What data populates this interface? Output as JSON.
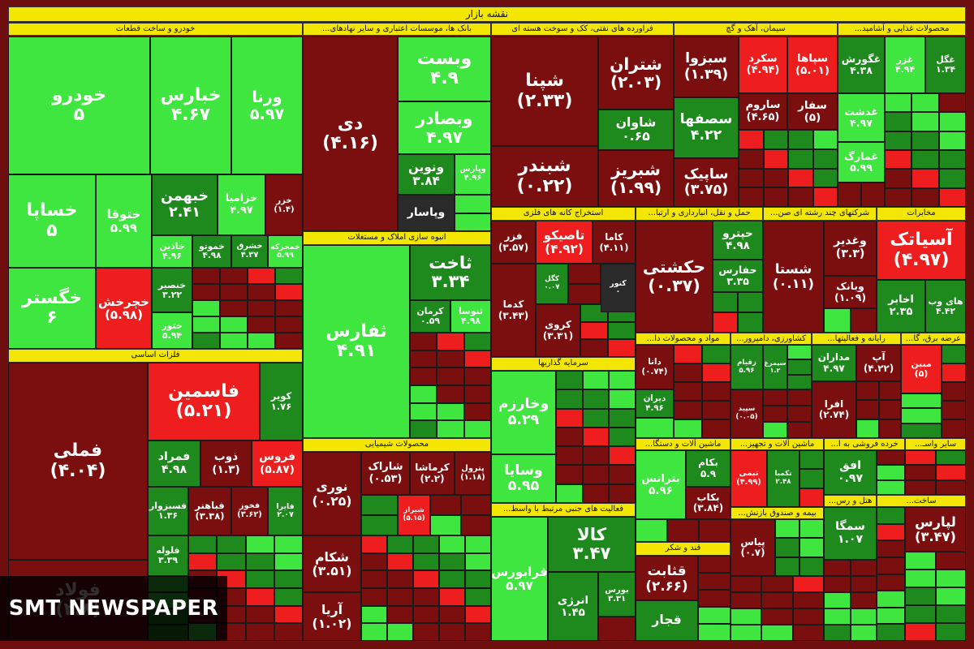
{
  "title": "نقشه بازار",
  "watermark": "SMT NEWSPAPER",
  "sectors": [
    {
      "title": "خودرو و ساخت قطعات",
      "tiles": [
        {
          "name": "خودرو",
          "change": "۵"
        },
        {
          "name": "خبارس",
          "change": "۴.۶۷"
        },
        {
          "name": "ورنا",
          "change": "۵.۹۷"
        },
        {
          "name": "خساپا",
          "change": "۵"
        },
        {
          "name": "ختوقا",
          "change": "۵.۹۹"
        },
        {
          "name": "خبهمن",
          "change": "۲.۴۱"
        },
        {
          "name": "خزامیا",
          "change": "۴.۹۷"
        },
        {
          "name": "خزر",
          "change": "(۱.۴)"
        },
        {
          "name": "خگستر",
          "change": "۶"
        },
        {
          "name": "خچرخش",
          "change": "(۵.۹۸)"
        },
        {
          "name": "خاذین",
          "change": "۴.۹۶"
        },
        {
          "name": "خموتو",
          "change": "۴.۹۸"
        },
        {
          "name": "خشرق",
          "change": "۴.۳۷"
        },
        {
          "name": "خمحرکه",
          "change": "۵.۹۹"
        },
        {
          "name": "خنصیر",
          "change": "۳.۲۲"
        },
        {
          "name": "ختور",
          "change": "۵.۹۴"
        }
      ]
    },
    {
      "title": "فلزات اساسی",
      "tiles": [
        {
          "name": "فملی",
          "change": "(۴.۰۴)"
        },
        {
          "name": "فولاد",
          "change": "(۲.۸)"
        },
        {
          "name": "فاسمین",
          "change": "(۵.۲۱)"
        },
        {
          "name": "کویر",
          "change": "۱.۷۶"
        },
        {
          "name": "فمراد",
          "change": "۴.۹۸"
        },
        {
          "name": "ذوب",
          "change": "(۱.۳)"
        },
        {
          "name": "فروس",
          "change": "(۵.۸۷)"
        },
        {
          "name": "فسبزوار",
          "change": "۱.۳۶"
        },
        {
          "name": "فباهنر",
          "change": "(۳.۳۸)"
        },
        {
          "name": "فخوز",
          "change": "(۳.۶۲)"
        },
        {
          "name": "فایرا",
          "change": "۲.۰۷"
        },
        {
          "name": "فلوله",
          "change": "۳.۳۹"
        }
      ]
    },
    {
      "title": "بانک ها، موسسات اعتباری و سایر نهادهای...",
      "tiles": [
        {
          "name": "دی",
          "change": "(۴.۱۶)"
        },
        {
          "name": "وبست",
          "change": "۴.۹"
        },
        {
          "name": "وبصادر",
          "change": "۴.۹۷"
        },
        {
          "name": "ونوین",
          "change": "۳.۸۴"
        },
        {
          "name": "وپارس",
          "change": "۴.۹۶"
        },
        {
          "name": "وپاسار"
        }
      ]
    },
    {
      "title": "انبوه سازی املاک و مستغلات",
      "tiles": [
        {
          "name": "ثفارس",
          "change": "۴.۹۱"
        },
        {
          "name": "ثاخت",
          "change": "۳.۳۴"
        },
        {
          "name": "کرمان",
          "change": "۰.۵۹"
        },
        {
          "name": "ثنوسا",
          "change": "۴.۹۸"
        }
      ]
    },
    {
      "title": "محصولات شیمیایی",
      "tiles": [
        {
          "name": "نوری",
          "change": "(۰.۲۵)"
        },
        {
          "name": "شاراک",
          "change": "(۰.۵۳)"
        },
        {
          "name": "کرماشا",
          "change": "(۲.۲)"
        },
        {
          "name": "پترول",
          "change": "(۱.۱۸)"
        },
        {
          "name": "شیراز",
          "change": "(۵.۱۵)"
        },
        {
          "name": "شکام",
          "change": "(۳.۵۱)"
        },
        {
          "name": "آریا",
          "change": "(۱.۰۲)"
        }
      ]
    },
    {
      "title": "فراورده های نفتی، کک و سوخت هسته ای",
      "tiles": [
        {
          "name": "شپنا",
          "change": "(۲.۳۳)"
        },
        {
          "name": "شتران",
          "change": "(۲.۰۳)"
        },
        {
          "name": "شاوان",
          "change": "۰.۶۵"
        },
        {
          "name": "شبندر",
          "change": "(۰.۲۲)"
        },
        {
          "name": "شبریز",
          "change": "(۱.۹۹)"
        }
      ]
    },
    {
      "title": "سیمان، آهک و گچ",
      "tiles": [
        {
          "name": "سبزوا",
          "change": "(۱.۳۹)"
        },
        {
          "name": "سکرد",
          "change": "(۴.۹۴)"
        },
        {
          "name": "سپاها",
          "change": "(۵.۰۱)"
        },
        {
          "name": "سصفها",
          "change": "۴.۲۲"
        },
        {
          "name": "ساروم",
          "change": "(۴.۶۵)"
        },
        {
          "name": "سفار",
          "change": "(۵)"
        },
        {
          "name": "ساپیک",
          "change": "(۳.۷۵)"
        }
      ]
    },
    {
      "title": "محصولات غذایی و آشامید...",
      "tiles": [
        {
          "name": "غگورش",
          "change": "۴.۳۸"
        },
        {
          "name": "غزر",
          "change": "۴.۹۴"
        },
        {
          "name": "غگل",
          "change": "۱.۳۴"
        },
        {
          "name": "غدشت",
          "change": "۴.۹۷"
        },
        {
          "name": "غمارگ",
          "change": "۵.۹۹"
        }
      ]
    },
    {
      "title": "استخراج کانه های فلزی",
      "tiles": [
        {
          "name": "فزر",
          "change": "(۳.۵۷)"
        },
        {
          "name": "تاصیکو",
          "change": "(۴.۹۲)"
        },
        {
          "name": "کاما",
          "change": "(۴.۱۱)"
        },
        {
          "name": "کگل",
          "change": "۰.۰۷"
        },
        {
          "name": "کنور",
          "change": "۰"
        },
        {
          "name": "کدما",
          "change": "(۳.۴۳)"
        },
        {
          "name": "کروی",
          "change": "(۳.۳۱)"
        }
      ]
    },
    {
      "title": "حمل و نقل، انبارداری و ارتبا...",
      "tiles": [
        {
          "name": "حکشتی",
          "change": "(۰.۳۷)"
        },
        {
          "name": "حپترو",
          "change": "۴.۹۸"
        },
        {
          "name": "حفارس",
          "change": "۳.۳۵"
        }
      ]
    },
    {
      "title": "شرکتهای چند رشته ای صن...",
      "tiles": [
        {
          "name": "شستا",
          "change": "(۰.۱۱)"
        },
        {
          "name": "وغدیر",
          "change": "(۳.۳)"
        },
        {
          "name": "وبانک",
          "change": "(۱.۰۹)"
        }
      ]
    },
    {
      "title": "مخابرات",
      "tiles": [
        {
          "name": "آسیاتک",
          "change": "(۴.۹۷)"
        },
        {
          "name": "اخابر",
          "change": "۲.۳۵"
        },
        {
          "name": "های وب",
          "change": "۴.۴۲"
        }
      ]
    },
    {
      "title": "سرمایه گذاریها",
      "tiles": [
        {
          "name": "وخارزم",
          "change": "۵.۲۹"
        },
        {
          "name": "وسایا",
          "change": "۵.۹۵"
        }
      ]
    },
    {
      "title": "فعالیت های جنبی مرتبط با واسط...",
      "tiles": [
        {
          "name": "فرابورس",
          "change": "۵.۹۷"
        },
        {
          "name": "کالا",
          "change": "۳.۴۷"
        },
        {
          "name": "انرژی",
          "change": "۱.۴۵"
        },
        {
          "name": "بورس",
          "change": "۳.۳۱"
        }
      ]
    },
    {
      "title": "مواد و محصولات دا...",
      "tiles": [
        {
          "name": "دانا",
          "change": "(۰.۷۴)"
        },
        {
          "name": "دیران",
          "change": "۴.۹۶"
        }
      ]
    },
    {
      "title": "کشاورزی، دامپرور...",
      "tiles": [
        {
          "name": "زقیام",
          "change": "۵.۹۶"
        },
        {
          "name": "سیمرغ",
          "change": "۱.۲"
        },
        {
          "name": "سپید",
          "change": "(۰.۰۵)"
        }
      ]
    },
    {
      "title": "رایانه و فعالیتها...",
      "tiles": [
        {
          "name": "مداران",
          "change": "۴.۹۷"
        },
        {
          "name": "آپ",
          "change": "(۴.۲۲)"
        },
        {
          "name": "افرا",
          "change": "(۲.۷۴)"
        }
      ]
    },
    {
      "title": "عرضه برق، گا...",
      "tiles": [
        {
          "name": "مبین",
          "change": "(۵)"
        }
      ]
    },
    {
      "title": "ماشین آلات و دستگا...",
      "tiles": [
        {
          "name": "بترانس",
          "change": "۵.۹۶"
        },
        {
          "name": "بکام",
          "change": "۵.۹"
        },
        {
          "name": "بکاب",
          "change": "(۳.۸۴)"
        }
      ]
    },
    {
      "title": "قند و شکر",
      "tiles": [
        {
          "name": "قثابت",
          "change": "(۲.۶۶)"
        },
        {
          "name": "قجار"
        }
      ]
    },
    {
      "title": "ماشین آلات و تجهیز...",
      "tiles": [
        {
          "name": "تیمی",
          "change": "(۴.۹۹)"
        },
        {
          "name": "تکمبا",
          "change": "۲.۴۸"
        }
      ]
    },
    {
      "title": "خرده فروشی به ا...",
      "tiles": [
        {
          "name": "افق",
          "change": "۰.۹۷"
        }
      ]
    },
    {
      "title": "سایر واسـ...",
      "tiles": []
    },
    {
      "title": "بیمه و صندوق بازنش...",
      "tiles": [
        {
          "name": "پیاس",
          "change": "(۰.۷)"
        }
      ]
    },
    {
      "title": "هتل و رس...",
      "tiles": [
        {
          "name": "سمگا",
          "change": "۱.۰۷"
        }
      ]
    },
    {
      "title": "ساخت...",
      "tiles": [
        {
          "name": "لپارس",
          "change": "(۳.۴۷)"
        }
      ]
    }
  ]
}
